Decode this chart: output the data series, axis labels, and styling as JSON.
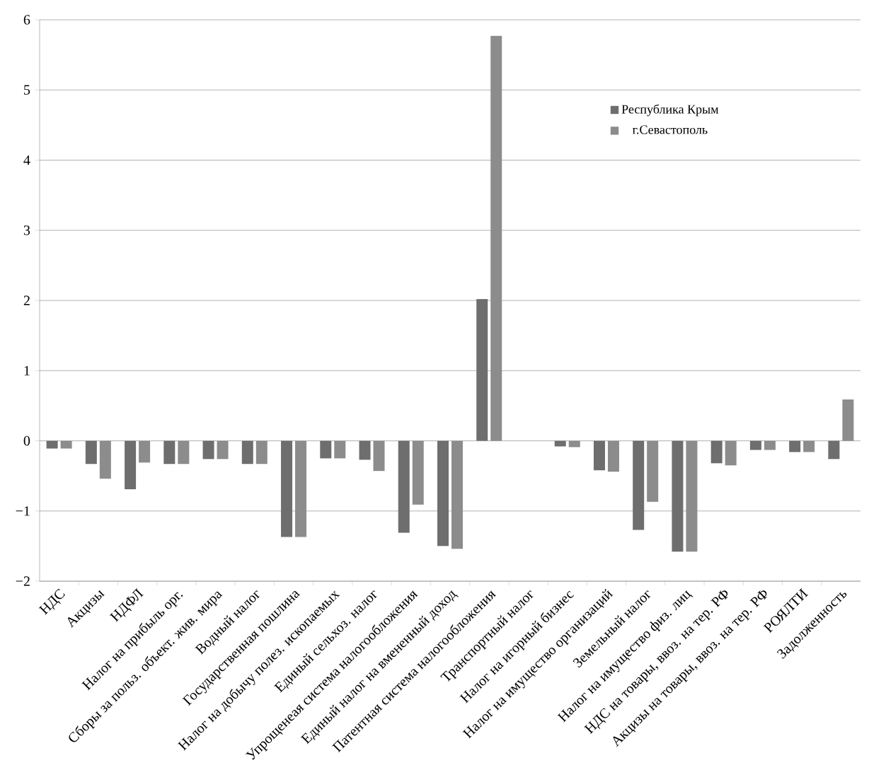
{
  "chart_data": {
    "type": "bar",
    "categories": [
      "НДС",
      "Акцизы",
      "НДФЛ",
      "Налог на прибыль орг.",
      "Сборы за польз. объект. жив. мира",
      "Водный налог",
      "Государственная пошлина",
      "Налог на добычу полез. ископаемых",
      "Единый сельхоз. налог",
      "Упрощенеая система налогообложения",
      "Единый налог на вмененный доход",
      "Патентная система налогообложения",
      "Транспортный налог",
      "Налог на игорный бизнес",
      "Налог на имущество организаций",
      "Земельный налог",
      "Налог на имущество физ. лиц",
      "НДС на товары, ввоз. на тер. РФ",
      "Акцизы на товары, ввоз. на тер. РФ",
      "РОЯЛТИ",
      "Задолженность"
    ],
    "series": [
      {
        "name": "Республика Крым",
        "color": "#6e6e6e",
        "values": [
          -0.11,
          -0.33,
          -0.69,
          -0.33,
          -0.26,
          -0.33,
          -1.37,
          -0.25,
          -0.27,
          -1.31,
          -1.5,
          2.02,
          0,
          -0.08,
          -0.42,
          -1.27,
          -1.58,
          -0.32,
          -0.13,
          -0.16,
          -0.26
        ]
      },
      {
        "name": "г.Севастополь",
        "color": "#8c8c8c",
        "values": [
          -0.11,
          -0.54,
          -0.31,
          -0.33,
          -0.26,
          -0.33,
          -1.37,
          -0.25,
          -0.43,
          -0.91,
          -1.54,
          5.77,
          0,
          -0.09,
          -0.44,
          -0.87,
          -1.58,
          -0.35,
          -0.13,
          -0.16,
          0.59
        ]
      }
    ],
    "ylim": [
      -2,
      6
    ],
    "yticks": [
      {
        "value": -2,
        "label": "−2"
      },
      {
        "value": -1,
        "label": "−1"
      },
      0,
      1,
      2,
      3,
      4,
      5,
      6
    ],
    "grid": "y",
    "legend": "top right"
  }
}
